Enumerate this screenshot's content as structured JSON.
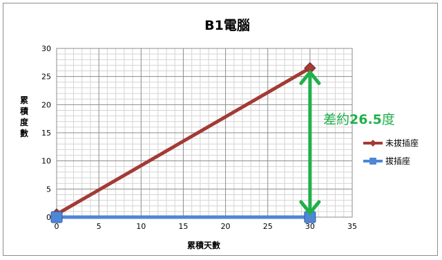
{
  "chart_data": {
    "type": "line",
    "title": "B1電腦",
    "xlabel": "累積天數",
    "ylabel": "累積度數",
    "xlim": [
      0,
      35
    ],
    "ylim": [
      0,
      30
    ],
    "x_ticks": [
      0,
      5,
      10,
      15,
      20,
      25,
      30,
      35
    ],
    "y_ticks": [
      0,
      5,
      10,
      15,
      20,
      25,
      30
    ],
    "grid": true,
    "legend_position": "right",
    "series": [
      {
        "name": "未拔插座",
        "x": [
          0,
          30
        ],
        "values": [
          0.5,
          26.5
        ],
        "color": "#a33a35",
        "marker": "diamond"
      },
      {
        "name": "拔插座",
        "x": [
          0,
          30
        ],
        "values": [
          0,
          0
        ],
        "color": "#4f86d6",
        "marker": "square"
      }
    ],
    "annotation": {
      "prefix": "差約",
      "value": "26.5",
      "suffix": "度",
      "color": "#1fb04a",
      "arrow_from": [
        30,
        0
      ],
      "arrow_to": [
        30,
        26.5
      ]
    }
  }
}
